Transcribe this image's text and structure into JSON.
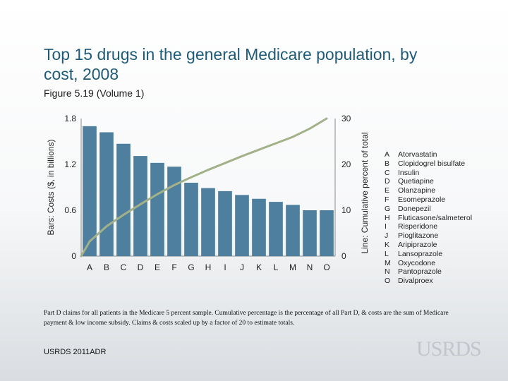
{
  "slide": {
    "title": "Top 15 drugs in the general Medicare population, by cost, 2008",
    "subtitle": "Figure 5.19 (Volume 1)",
    "footnote": "Part D claims for all patients in the Medicare 5 percent sample. Cumulative percentage is the percentage of all Part D, & costs are the sum of Medicare payment & low income subsidy. Claims & costs scaled up by a factor of 20 to estimate totals.",
    "footer_left": "USRDS 2011ADR",
    "logo_text": "USRDS"
  },
  "legend": [
    {
      "key": "A",
      "drug": "Atorvastatin"
    },
    {
      "key": "B",
      "drug": "Clopidogrel bisulfate"
    },
    {
      "key": "C",
      "drug": "Insulin"
    },
    {
      "key": "D",
      "drug": "Quetiapine"
    },
    {
      "key": "E",
      "drug": "Olanzapine"
    },
    {
      "key": "F",
      "drug": "Esomeprazole"
    },
    {
      "key": "G",
      "drug": "Donepezil"
    },
    {
      "key": "H",
      "drug": "Fluticasone/salmeterol"
    },
    {
      "key": "I",
      "drug": "Risperidone"
    },
    {
      "key": "J",
      "drug": "Pioglitazone"
    },
    {
      "key": "K",
      "drug": "Aripiprazole"
    },
    {
      "key": "L",
      "drug": "Lansoprazole"
    },
    {
      "key": "M",
      "drug": "Oxycodone"
    },
    {
      "key": "N",
      "drug": "Pantoprazole"
    },
    {
      "key": "O",
      "drug": "Divalproex"
    }
  ],
  "colors": {
    "title": "#1f5b78",
    "bar": "#4f7f9f",
    "line": "#a3b189",
    "axis": "#8a8a8a"
  },
  "chart_data": {
    "type": "bar",
    "categories": [
      "A",
      "B",
      "C",
      "D",
      "E",
      "F",
      "G",
      "H",
      "I",
      "J",
      "K",
      "L",
      "M",
      "N",
      "O"
    ],
    "values": [
      1.7,
      1.62,
      1.47,
      1.31,
      1.22,
      1.17,
      0.96,
      0.89,
      0.85,
      0.8,
      0.75,
      0.71,
      0.67,
      0.6,
      0.6
    ],
    "ylabel": "Bars: Costs ($, in billions)",
    "ylim": [
      0,
      1.8
    ],
    "yticks": [
      "0",
      "0.6",
      "1.2",
      "1.8"
    ],
    "y2label": "Line: Cumulative percent of total",
    "y2lim": [
      0,
      30
    ],
    "y2ticks": [
      "0",
      "10",
      "20",
      "30"
    ],
    "line_series": {
      "name": "Cumulative percent of total",
      "values": [
        3.2,
        6.5,
        9.0,
        11.3,
        13.5,
        15.5,
        17.2,
        18.8,
        20.3,
        21.8,
        23.2,
        24.6,
        26.0,
        27.8,
        30.0
      ],
      "start_value": 0
    }
  }
}
